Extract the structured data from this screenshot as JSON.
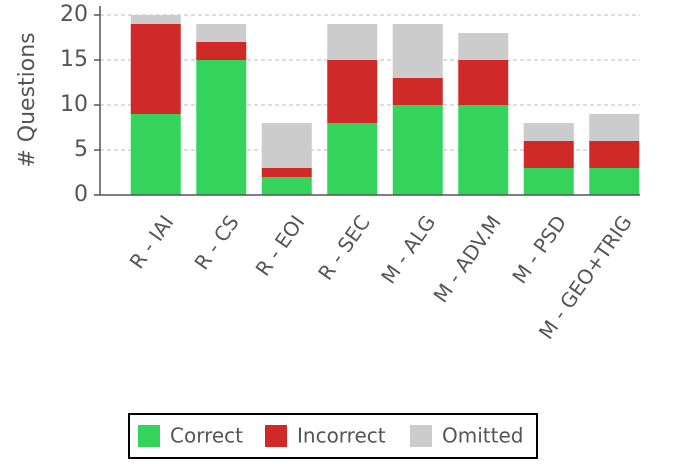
{
  "chart_data": {
    "type": "stacked_bar",
    "ylabel": "# Questions",
    "categories": [
      "R - IAI",
      "R - CS",
      "R - EOI",
      "R - SEC",
      "M - ALG",
      "M - ADV.M",
      "M - PSD",
      "M - GEO+TRIG"
    ],
    "series": [
      {
        "name": "Correct",
        "color": "#33d35c",
        "values": [
          9,
          15,
          2,
          8,
          10,
          10,
          3,
          3
        ]
      },
      {
        "name": "Incorrect",
        "color": "#cf2a27",
        "values": [
          10,
          2,
          1,
          7,
          3,
          5,
          3,
          3
        ]
      },
      {
        "name": "Omitted",
        "color": "#cccccc",
        "values": [
          1,
          2,
          5,
          4,
          6,
          3,
          2,
          3
        ]
      }
    ],
    "ylim": [
      0,
      21
    ],
    "yticks": [
      0,
      5,
      10,
      15,
      20
    ],
    "grid": true,
    "legend": "bottom"
  }
}
